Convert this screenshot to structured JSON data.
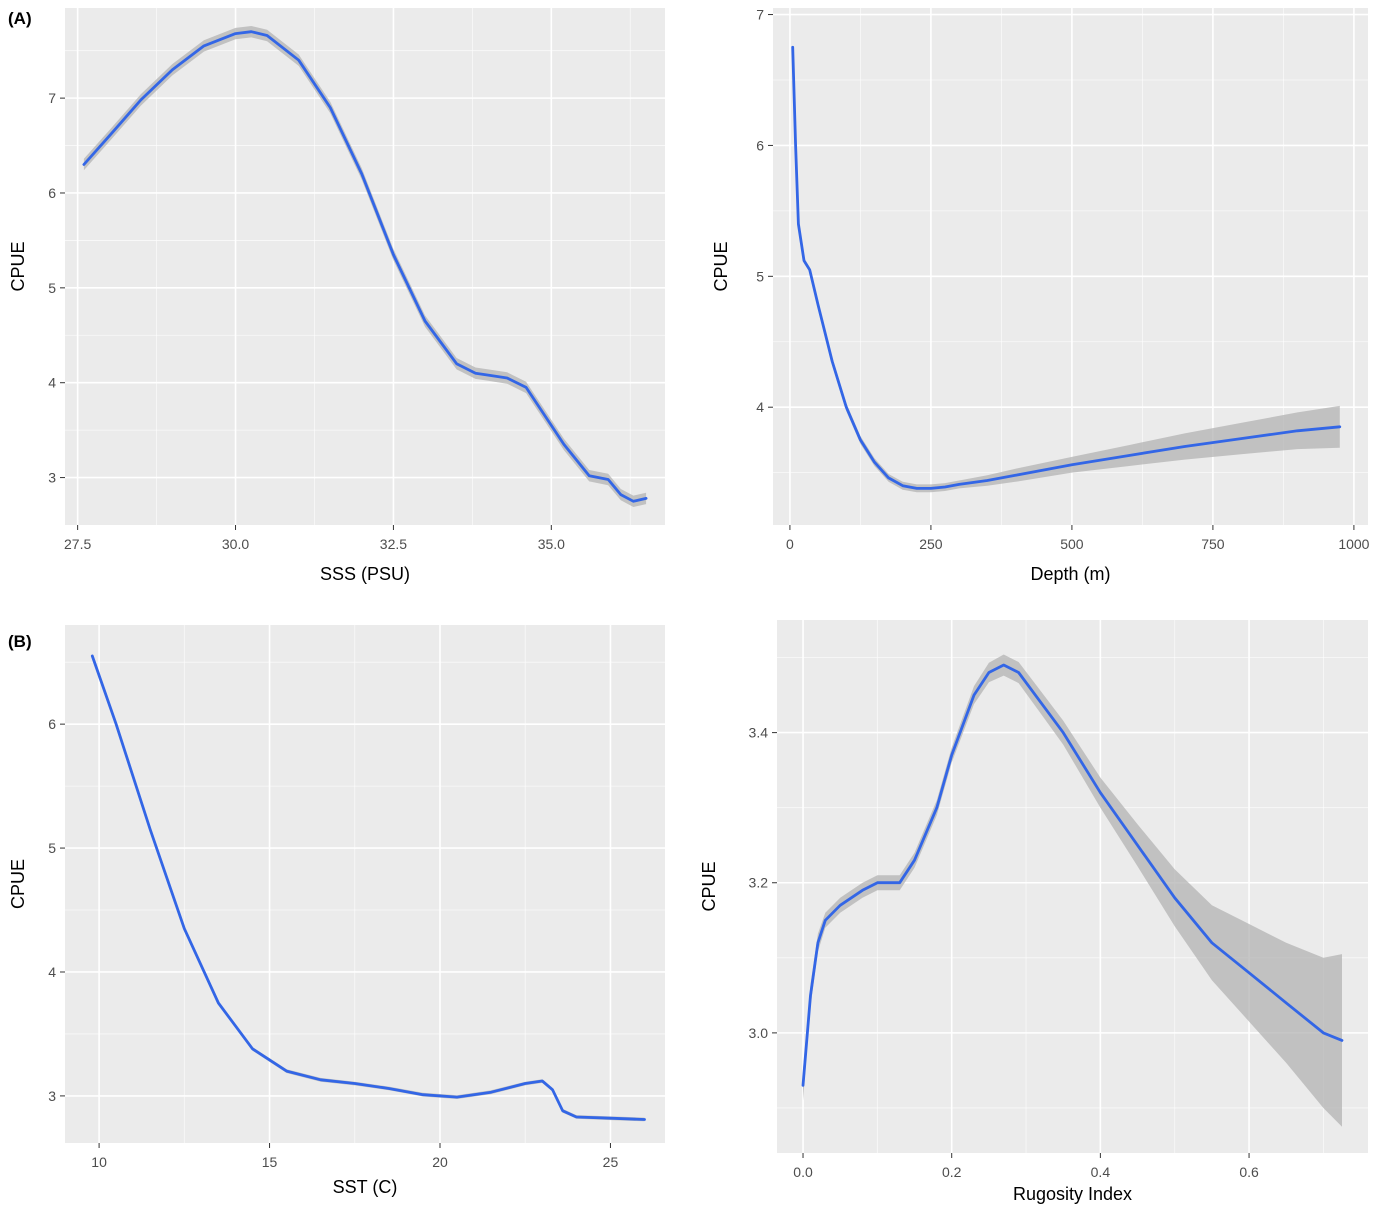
{
  "panel_labels": {
    "a": "(A)",
    "b": "(B)"
  },
  "colors": {
    "panel_bg": "#ebebeb",
    "grid": "#ffffff",
    "line": "#3366e6",
    "ribbon": "#b3b3b3",
    "tick_text": "#4d4d4d"
  },
  "chart_data": [
    {
      "type": "line",
      "xlabel": "SSS (PSU)",
      "ylabel": "CPUE",
      "xlim": [
        27.3,
        36.8
      ],
      "ylim": [
        2.5,
        7.95
      ],
      "xticks": [
        27.5,
        30.0,
        32.5,
        35.0
      ],
      "xtick_labels": [
        "27.5",
        "30.0",
        "32.5",
        "35.0"
      ],
      "yticks": [
        3,
        4,
        5,
        6,
        7
      ],
      "ytick_labels": [
        "3",
        "4",
        "5",
        "6",
        "7"
      ],
      "grid": true,
      "series": [
        {
          "x": [
            27.6,
            28.0,
            28.5,
            29.0,
            29.5,
            30.0,
            30.25,
            30.5,
            31.0,
            31.5,
            32.0,
            32.5,
            33.0,
            33.5,
            33.8,
            34.0,
            34.3,
            34.6,
            34.8,
            35.2,
            35.6,
            35.9,
            36.1,
            36.3,
            36.5
          ],
          "y": [
            6.3,
            6.6,
            6.98,
            7.3,
            7.55,
            7.68,
            7.7,
            7.66,
            7.4,
            6.9,
            6.2,
            5.35,
            4.65,
            4.2,
            4.1,
            4.08,
            4.05,
            3.95,
            3.75,
            3.35,
            3.02,
            2.98,
            2.82,
            2.75,
            2.78
          ],
          "band": 0.06
        }
      ]
    },
    {
      "type": "line",
      "xlabel": "Depth (m)",
      "ylabel": "CPUE",
      "xlim": [
        -30,
        1025
      ],
      "ylim": [
        3.1,
        7.05
      ],
      "xticks": [
        0,
        250,
        500,
        750,
        1000
      ],
      "xtick_labels": [
        "0",
        "250",
        "500",
        "750",
        "1000"
      ],
      "yticks": [
        4,
        5,
        6,
        7
      ],
      "ytick_labels": [
        "4",
        "5",
        "6",
        "7"
      ],
      "grid": true,
      "series": [
        {
          "x": [
            5,
            10,
            15,
            25,
            35,
            50,
            75,
            100,
            125,
            150,
            175,
            200,
            225,
            250,
            275,
            300,
            350,
            400,
            500,
            600,
            700,
            800,
            900,
            975
          ],
          "y": [
            6.75,
            6.0,
            5.4,
            5.12,
            5.05,
            4.78,
            4.35,
            4.0,
            3.75,
            3.58,
            3.46,
            3.4,
            3.38,
            3.38,
            3.39,
            3.41,
            3.44,
            3.48,
            3.56,
            3.63,
            3.7,
            3.76,
            3.82,
            3.85
          ],
          "band": [
            0.02,
            0.02,
            0.02,
            0.02,
            0.02,
            0.02,
            0.03,
            0.03,
            0.03,
            0.03,
            0.03,
            0.03,
            0.03,
            0.03,
            0.03,
            0.03,
            0.04,
            0.05,
            0.06,
            0.08,
            0.1,
            0.12,
            0.14,
            0.16
          ]
        }
      ]
    },
    {
      "type": "line",
      "xlabel": "SST (C)",
      "ylabel": "CPUE",
      "xlim": [
        9.0,
        26.6
      ],
      "ylim": [
        2.62,
        6.8
      ],
      "xticks": [
        10,
        15,
        20,
        25
      ],
      "xtick_labels": [
        "10",
        "15",
        "20",
        "25"
      ],
      "yticks": [
        3,
        4,
        5,
        6
      ],
      "ytick_labels": [
        "3",
        "4",
        "5",
        "6"
      ],
      "grid": true,
      "series": [
        {
          "x": [
            9.8,
            10.5,
            11.5,
            12.5,
            13.5,
            14.5,
            15.5,
            16.5,
            17.5,
            18.5,
            19.5,
            20.5,
            21.5,
            22.5,
            23.0,
            23.3,
            23.6,
            24.0,
            25.0,
            26.0
          ],
          "y": [
            6.55,
            6.0,
            5.15,
            4.35,
            3.75,
            3.38,
            3.2,
            3.13,
            3.1,
            3.06,
            3.01,
            2.99,
            3.03,
            3.1,
            3.12,
            3.05,
            2.88,
            2.83,
            2.82,
            2.81
          ],
          "band": 0.015
        }
      ]
    },
    {
      "type": "line",
      "xlabel": "Rugosity Index",
      "ylabel": "CPUE",
      "xlim": [
        -0.035,
        0.76
      ],
      "ylim": [
        2.84,
        3.55
      ],
      "xticks": [
        0.0,
        0.2,
        0.4,
        0.6
      ],
      "xtick_labels": [
        "0.0",
        "0.2",
        "0.4",
        "0.6"
      ],
      "yticks": [
        3.0,
        3.2,
        3.4
      ],
      "ytick_labels": [
        "3.0",
        "3.2",
        "3.4"
      ],
      "grid": true,
      "series": [
        {
          "x": [
            0.0,
            0.01,
            0.02,
            0.03,
            0.05,
            0.08,
            0.1,
            0.13,
            0.15,
            0.18,
            0.2,
            0.23,
            0.25,
            0.27,
            0.29,
            0.32,
            0.35,
            0.4,
            0.45,
            0.5,
            0.55,
            0.6,
            0.65,
            0.7,
            0.725
          ],
          "y": [
            2.93,
            3.05,
            3.12,
            3.15,
            3.17,
            3.19,
            3.2,
            3.2,
            3.23,
            3.3,
            3.37,
            3.45,
            3.48,
            3.49,
            3.48,
            3.44,
            3.4,
            3.32,
            3.25,
            3.18,
            3.12,
            3.08,
            3.04,
            3.0,
            2.99
          ],
          "band": [
            0.02,
            0.015,
            0.012,
            0.01,
            0.01,
            0.01,
            0.01,
            0.01,
            0.01,
            0.01,
            0.01,
            0.012,
            0.013,
            0.014,
            0.014,
            0.015,
            0.016,
            0.02,
            0.028,
            0.038,
            0.05,
            0.065,
            0.08,
            0.1,
            0.115
          ]
        }
      ]
    }
  ]
}
